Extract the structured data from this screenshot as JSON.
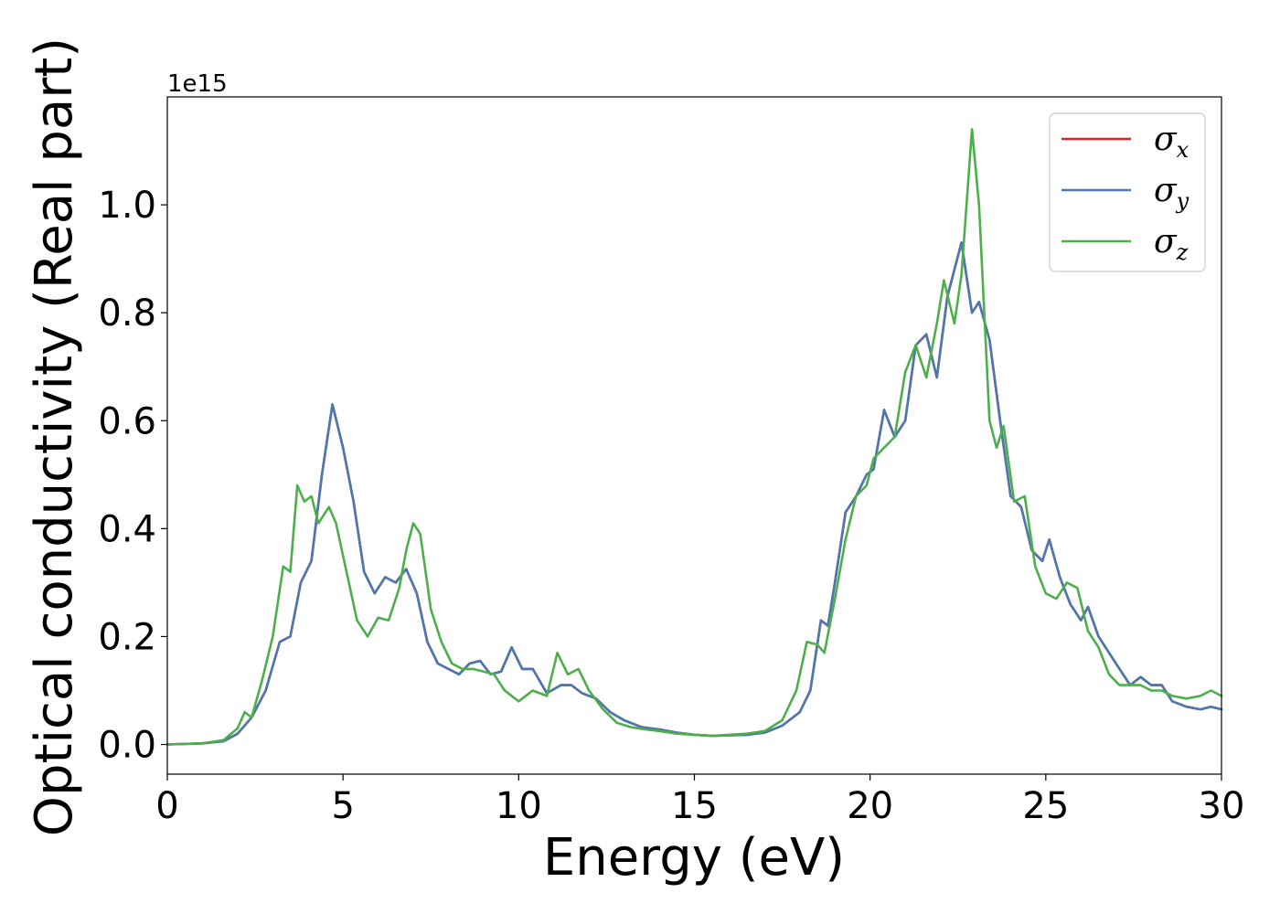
{
  "chart_data": {
    "type": "line",
    "xlabel": "Energy (eV)",
    "ylabel": "Optical conductivity (Real part)",
    "y_offset_text": "1e15",
    "xlim": [
      0,
      30
    ],
    "ylim": [
      -0.055,
      1.2
    ],
    "x_ticks": [
      0,
      5,
      10,
      15,
      20,
      25,
      30
    ],
    "x_tick_labels": [
      "0",
      "5",
      "10",
      "15",
      "20",
      "25",
      "30"
    ],
    "y_ticks": [
      0.0,
      0.2,
      0.4,
      0.6,
      0.8,
      1.0
    ],
    "y_tick_labels": [
      "0.0",
      "0.2",
      "0.4",
      "0.6",
      "0.8",
      "1.0"
    ],
    "grid": false,
    "legend_position": "top-right",
    "colors": {
      "sigma_x": "#d62728",
      "sigma_y": "#4a78b0",
      "sigma_z": "#4daf4a"
    },
    "legend": [
      {
        "key": "sigma_x",
        "symbol": "σ",
        "sub": "x"
      },
      {
        "key": "sigma_y",
        "symbol": "σ",
        "sub": "y"
      },
      {
        "key": "sigma_z",
        "symbol": "σ",
        "sub": "z"
      }
    ],
    "series": [
      {
        "key": "sigma_x",
        "name": "σx",
        "points": [
          [
            0,
            0
          ],
          [
            1,
            0.002
          ],
          [
            1.6,
            0.006
          ],
          [
            2,
            0.02
          ],
          [
            2.4,
            0.05
          ],
          [
            2.8,
            0.1
          ],
          [
            3.2,
            0.19
          ],
          [
            3.5,
            0.2
          ],
          [
            3.8,
            0.3
          ],
          [
            4.1,
            0.34
          ],
          [
            4.4,
            0.5
          ],
          [
            4.7,
            0.63
          ],
          [
            5,
            0.55
          ],
          [
            5.3,
            0.45
          ],
          [
            5.6,
            0.32
          ],
          [
            5.9,
            0.28
          ],
          [
            6.2,
            0.31
          ],
          [
            6.5,
            0.3
          ],
          [
            6.8,
            0.325
          ],
          [
            7.1,
            0.28
          ],
          [
            7.4,
            0.19
          ],
          [
            7.7,
            0.15
          ],
          [
            8,
            0.14
          ],
          [
            8.3,
            0.13
          ],
          [
            8.6,
            0.15
          ],
          [
            8.9,
            0.155
          ],
          [
            9.2,
            0.13
          ],
          [
            9.5,
            0.135
          ],
          [
            9.8,
            0.18
          ],
          [
            10.1,
            0.14
          ],
          [
            10.4,
            0.14
          ],
          [
            10.8,
            0.095
          ],
          [
            11.2,
            0.11
          ],
          [
            11.5,
            0.11
          ],
          [
            11.8,
            0.095
          ],
          [
            12.2,
            0.085
          ],
          [
            12.6,
            0.06
          ],
          [
            13,
            0.045
          ],
          [
            13.5,
            0.032
          ],
          [
            14,
            0.028
          ],
          [
            14.5,
            0.022
          ],
          [
            15,
            0.018
          ],
          [
            15.5,
            0.016
          ],
          [
            16,
            0.017
          ],
          [
            16.5,
            0.018
          ],
          [
            17,
            0.022
          ],
          [
            17.5,
            0.035
          ],
          [
            18,
            0.06
          ],
          [
            18.3,
            0.1
          ],
          [
            18.6,
            0.23
          ],
          [
            18.8,
            0.22
          ],
          [
            19,
            0.3
          ],
          [
            19.3,
            0.43
          ],
          [
            19.6,
            0.46
          ],
          [
            19.9,
            0.5
          ],
          [
            20.1,
            0.51
          ],
          [
            20.4,
            0.62
          ],
          [
            20.7,
            0.57
          ],
          [
            21,
            0.6
          ],
          [
            21.3,
            0.74
          ],
          [
            21.6,
            0.76
          ],
          [
            21.9,
            0.68
          ],
          [
            22.2,
            0.83
          ],
          [
            22.6,
            0.93
          ],
          [
            22.9,
            0.8
          ],
          [
            23.1,
            0.82
          ],
          [
            23.4,
            0.75
          ],
          [
            23.7,
            0.6
          ],
          [
            24,
            0.46
          ],
          [
            24.3,
            0.44
          ],
          [
            24.6,
            0.36
          ],
          [
            24.9,
            0.34
          ],
          [
            25.1,
            0.38
          ],
          [
            25.4,
            0.31
          ],
          [
            25.7,
            0.26
          ],
          [
            26,
            0.23
          ],
          [
            26.2,
            0.255
          ],
          [
            26.5,
            0.2
          ],
          [
            26.8,
            0.17
          ],
          [
            27.1,
            0.14
          ],
          [
            27.4,
            0.11
          ],
          [
            27.7,
            0.125
          ],
          [
            28,
            0.11
          ],
          [
            28.3,
            0.11
          ],
          [
            28.6,
            0.08
          ],
          [
            29,
            0.07
          ],
          [
            29.4,
            0.065
          ],
          [
            29.7,
            0.07
          ],
          [
            30,
            0.065
          ]
        ]
      },
      {
        "key": "sigma_y",
        "name": "σy",
        "points": [
          [
            0,
            0
          ],
          [
            1,
            0.002
          ],
          [
            1.6,
            0.006
          ],
          [
            2,
            0.02
          ],
          [
            2.4,
            0.05
          ],
          [
            2.8,
            0.1
          ],
          [
            3.2,
            0.19
          ],
          [
            3.5,
            0.2
          ],
          [
            3.8,
            0.3
          ],
          [
            4.1,
            0.34
          ],
          [
            4.4,
            0.5
          ],
          [
            4.7,
            0.63
          ],
          [
            5,
            0.55
          ],
          [
            5.3,
            0.45
          ],
          [
            5.6,
            0.32
          ],
          [
            5.9,
            0.28
          ],
          [
            6.2,
            0.31
          ],
          [
            6.5,
            0.3
          ],
          [
            6.8,
            0.325
          ],
          [
            7.1,
            0.28
          ],
          [
            7.4,
            0.19
          ],
          [
            7.7,
            0.15
          ],
          [
            8,
            0.14
          ],
          [
            8.3,
            0.13
          ],
          [
            8.6,
            0.15
          ],
          [
            8.9,
            0.155
          ],
          [
            9.2,
            0.13
          ],
          [
            9.5,
            0.135
          ],
          [
            9.8,
            0.18
          ],
          [
            10.1,
            0.14
          ],
          [
            10.4,
            0.14
          ],
          [
            10.8,
            0.095
          ],
          [
            11.2,
            0.11
          ],
          [
            11.5,
            0.11
          ],
          [
            11.8,
            0.095
          ],
          [
            12.2,
            0.085
          ],
          [
            12.6,
            0.06
          ],
          [
            13,
            0.045
          ],
          [
            13.5,
            0.032
          ],
          [
            14,
            0.028
          ],
          [
            14.5,
            0.022
          ],
          [
            15,
            0.018
          ],
          [
            15.5,
            0.016
          ],
          [
            16,
            0.017
          ],
          [
            16.5,
            0.018
          ],
          [
            17,
            0.022
          ],
          [
            17.5,
            0.035
          ],
          [
            18,
            0.06
          ],
          [
            18.3,
            0.1
          ],
          [
            18.6,
            0.23
          ],
          [
            18.8,
            0.22
          ],
          [
            19,
            0.3
          ],
          [
            19.3,
            0.43
          ],
          [
            19.6,
            0.46
          ],
          [
            19.9,
            0.5
          ],
          [
            20.1,
            0.51
          ],
          [
            20.4,
            0.62
          ],
          [
            20.7,
            0.57
          ],
          [
            21,
            0.6
          ],
          [
            21.3,
            0.74
          ],
          [
            21.6,
            0.76
          ],
          [
            21.9,
            0.68
          ],
          [
            22.2,
            0.83
          ],
          [
            22.6,
            0.93
          ],
          [
            22.9,
            0.8
          ],
          [
            23.1,
            0.82
          ],
          [
            23.4,
            0.75
          ],
          [
            23.7,
            0.6
          ],
          [
            24,
            0.46
          ],
          [
            24.3,
            0.44
          ],
          [
            24.6,
            0.36
          ],
          [
            24.9,
            0.34
          ],
          [
            25.1,
            0.38
          ],
          [
            25.4,
            0.31
          ],
          [
            25.7,
            0.26
          ],
          [
            26,
            0.23
          ],
          [
            26.2,
            0.255
          ],
          [
            26.5,
            0.2
          ],
          [
            26.8,
            0.17
          ],
          [
            27.1,
            0.14
          ],
          [
            27.4,
            0.11
          ],
          [
            27.7,
            0.125
          ],
          [
            28,
            0.11
          ],
          [
            28.3,
            0.11
          ],
          [
            28.6,
            0.08
          ],
          [
            29,
            0.07
          ],
          [
            29.4,
            0.065
          ],
          [
            29.7,
            0.07
          ],
          [
            30,
            0.065
          ]
        ]
      },
      {
        "key": "sigma_z",
        "name": "σz",
        "points": [
          [
            0,
            0
          ],
          [
            1,
            0.002
          ],
          [
            1.6,
            0.008
          ],
          [
            2,
            0.03
          ],
          [
            2.2,
            0.06
          ],
          [
            2.4,
            0.05
          ],
          [
            2.7,
            0.12
          ],
          [
            3,
            0.2
          ],
          [
            3.3,
            0.33
          ],
          [
            3.5,
            0.32
          ],
          [
            3.7,
            0.48
          ],
          [
            3.9,
            0.45
          ],
          [
            4.1,
            0.46
          ],
          [
            4.3,
            0.41
          ],
          [
            4.6,
            0.44
          ],
          [
            4.8,
            0.41
          ],
          [
            5.1,
            0.32
          ],
          [
            5.4,
            0.23
          ],
          [
            5.7,
            0.2
          ],
          [
            6,
            0.235
          ],
          [
            6.3,
            0.23
          ],
          [
            6.6,
            0.29
          ],
          [
            6.8,
            0.36
          ],
          [
            7,
            0.41
          ],
          [
            7.2,
            0.39
          ],
          [
            7.5,
            0.25
          ],
          [
            7.8,
            0.19
          ],
          [
            8.1,
            0.15
          ],
          [
            8.4,
            0.14
          ],
          [
            8.7,
            0.14
          ],
          [
            9,
            0.135
          ],
          [
            9.3,
            0.13
          ],
          [
            9.6,
            0.1
          ],
          [
            10,
            0.08
          ],
          [
            10.4,
            0.1
          ],
          [
            10.8,
            0.09
          ],
          [
            11.1,
            0.17
          ],
          [
            11.4,
            0.13
          ],
          [
            11.7,
            0.14
          ],
          [
            12,
            0.1
          ],
          [
            12.4,
            0.065
          ],
          [
            12.8,
            0.04
          ],
          [
            13.2,
            0.032
          ],
          [
            13.6,
            0.028
          ],
          [
            14,
            0.025
          ],
          [
            14.5,
            0.02
          ],
          [
            15,
            0.018
          ],
          [
            15.5,
            0.016
          ],
          [
            16,
            0.018
          ],
          [
            16.5,
            0.02
          ],
          [
            17,
            0.025
          ],
          [
            17.5,
            0.045
          ],
          [
            17.9,
            0.1
          ],
          [
            18.2,
            0.19
          ],
          [
            18.5,
            0.185
          ],
          [
            18.7,
            0.17
          ],
          [
            19,
            0.27
          ],
          [
            19.3,
            0.38
          ],
          [
            19.6,
            0.46
          ],
          [
            19.9,
            0.48
          ],
          [
            20.1,
            0.53
          ],
          [
            20.4,
            0.55
          ],
          [
            20.7,
            0.57
          ],
          [
            21,
            0.69
          ],
          [
            21.3,
            0.74
          ],
          [
            21.6,
            0.68
          ],
          [
            21.9,
            0.78
          ],
          [
            22.1,
            0.86
          ],
          [
            22.4,
            0.78
          ],
          [
            22.6,
            0.87
          ],
          [
            22.9,
            1.14
          ],
          [
            23.1,
            1.0
          ],
          [
            23.4,
            0.6
          ],
          [
            23.6,
            0.55
          ],
          [
            23.8,
            0.59
          ],
          [
            24.1,
            0.45
          ],
          [
            24.4,
            0.46
          ],
          [
            24.7,
            0.33
          ],
          [
            25,
            0.28
          ],
          [
            25.3,
            0.27
          ],
          [
            25.6,
            0.3
          ],
          [
            25.9,
            0.29
          ],
          [
            26.2,
            0.21
          ],
          [
            26.5,
            0.18
          ],
          [
            26.8,
            0.13
          ],
          [
            27.1,
            0.11
          ],
          [
            27.4,
            0.11
          ],
          [
            27.7,
            0.11
          ],
          [
            28,
            0.1
          ],
          [
            28.3,
            0.1
          ],
          [
            28.6,
            0.09
          ],
          [
            29,
            0.085
          ],
          [
            29.4,
            0.09
          ],
          [
            29.7,
            0.1
          ],
          [
            30,
            0.09
          ]
        ]
      }
    ]
  }
}
